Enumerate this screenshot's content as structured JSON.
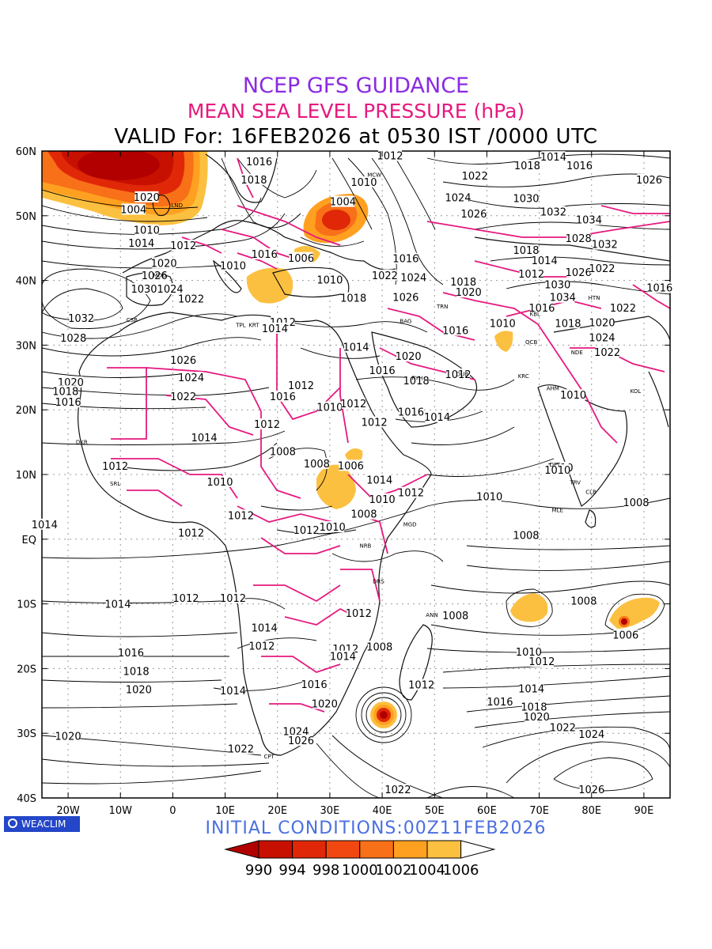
{
  "titles": {
    "line1": "NCEP GFS GUIDANCE",
    "line2": "MEAN SEA LEVEL PRESSURE (hPa)",
    "line3": "VALID For: 16FEB2026 at 0530 IST /0000 UTC"
  },
  "initial_conditions": "INITIAL CONDITIONS:00Z11FEB2026",
  "logo_text": "WEACLIM",
  "colors": {
    "title1": "#8a2be2",
    "title2": "#e6197f",
    "borders": "#e6197f",
    "init": "#4a6fe0",
    "logo": "#2446c8",
    "shade": [
      "#b20000",
      "#c81000",
      "#e02808",
      "#f04810",
      "#f87018",
      "#ffa020",
      "#fcc040",
      "#ffffff"
    ]
  },
  "map": {
    "lat_labels": [
      "60N",
      "50N",
      "40N",
      "30N",
      "20N",
      "10N",
      "EQ",
      "10S",
      "20S",
      "30S",
      "40S"
    ],
    "lon_labels": [
      "20W",
      "10W",
      "0",
      "10E",
      "20E",
      "30E",
      "40E",
      "50E",
      "60E",
      "70E",
      "80E",
      "90E"
    ],
    "contour_labels": [
      {
        "t": "1016",
        "lon": 16.5,
        "lat": 58.3
      },
      {
        "t": "1018",
        "lon": 15.5,
        "lat": 55.5
      },
      {
        "t": "1012",
        "lon": 41.5,
        "lat": 59.2
      },
      {
        "t": "1010",
        "lon": 36.5,
        "lat": 55.1
      },
      {
        "t": "1004",
        "lon": 32.5,
        "lat": 52.1
      },
      {
        "t": "1014",
        "lon": 72.7,
        "lat": 59.0
      },
      {
        "t": "1016",
        "lon": 77.7,
        "lat": 57.7
      },
      {
        "t": "1018",
        "lon": 67.7,
        "lat": 57.7
      },
      {
        "t": "1022",
        "lon": 57.7,
        "lat": 56.1
      },
      {
        "t": "1024",
        "lon": 54.5,
        "lat": 52.7
      },
      {
        "t": "1026",
        "lon": 57.5,
        "lat": 50.2
      },
      {
        "t": "1030",
        "lon": 67.5,
        "lat": 52.6
      },
      {
        "t": "1032",
        "lon": 72.7,
        "lat": 50.5
      },
      {
        "t": "1034",
        "lon": 79.5,
        "lat": 49.3
      },
      {
        "t": "1028",
        "lon": 77.5,
        "lat": 46.4
      },
      {
        "t": "1032",
        "lon": 82.5,
        "lat": 45.5
      },
      {
        "t": "1026",
        "lon": 91.0,
        "lat": 55.5
      },
      {
        "t": "1020",
        "lon": -5.0,
        "lat": 52.8
      },
      {
        "t": "1004",
        "lon": -7.5,
        "lat": 50.9
      },
      {
        "t": "1010",
        "lon": -5.0,
        "lat": 47.7
      },
      {
        "t": "1014",
        "lon": -6.0,
        "lat": 45.7
      },
      {
        "t": "1012",
        "lon": 2.0,
        "lat": 45.3
      },
      {
        "t": "1020",
        "lon": -1.7,
        "lat": 42.6
      },
      {
        "t": "1026",
        "lon": -3.5,
        "lat": 40.7
      },
      {
        "t": "1030",
        "lon": -5.5,
        "lat": 38.6
      },
      {
        "t": "1024",
        "lon": -0.5,
        "lat": 38.6
      },
      {
        "t": "1022",
        "lon": 3.5,
        "lat": 37.1
      },
      {
        "t": "1032",
        "lon": -17.5,
        "lat": 34.1
      },
      {
        "t": "1028",
        "lon": -19.0,
        "lat": 31.0
      },
      {
        "t": "1026",
        "lon": 2.0,
        "lat": 27.6
      },
      {
        "t": "1024",
        "lon": 3.5,
        "lat": 24.9
      },
      {
        "t": "1022",
        "lon": 2.0,
        "lat": 22.0
      },
      {
        "t": "1020",
        "lon": -19.5,
        "lat": 24.2
      },
      {
        "t": "1018",
        "lon": -20.5,
        "lat": 22.8
      },
      {
        "t": "1016",
        "lon": -20.0,
        "lat": 21.1
      },
      {
        "t": "1014",
        "lon": 6.0,
        "lat": 15.6
      },
      {
        "t": "1012",
        "lon": -11.0,
        "lat": 11.2
      },
      {
        "t": "1010",
        "lon": 9.0,
        "lat": 8.8
      },
      {
        "t": "1012",
        "lon": 13.0,
        "lat": 3.6
      },
      {
        "t": "1012",
        "lon": 3.5,
        "lat": 0.9
      },
      {
        "t": "1008",
        "lon": 21.0,
        "lat": 13.5
      },
      {
        "t": "1008",
        "lon": 27.5,
        "lat": 11.6
      },
      {
        "t": "1006",
        "lon": 34.0,
        "lat": 11.3
      },
      {
        "t": "1014",
        "lon": 39.5,
        "lat": 9.1
      },
      {
        "t": "1010",
        "lon": 40.0,
        "lat": 6.1
      },
      {
        "t": "1012",
        "lon": 45.5,
        "lat": 7.1
      },
      {
        "t": "1008",
        "lon": 36.5,
        "lat": 3.8
      },
      {
        "t": "1010",
        "lon": 30.5,
        "lat": 1.8
      },
      {
        "t": "1012",
        "lon": 25.5,
        "lat": 1.3
      },
      {
        "t": "1010",
        "lon": 60.5,
        "lat": 6.5
      },
      {
        "t": "1008",
        "lon": 67.5,
        "lat": 0.5
      },
      {
        "t": "1008",
        "lon": 88.5,
        "lat": 5.6
      },
      {
        "t": "1010",
        "lon": 74.0,
        "lat": 11.0
      },
      {
        "t": "1012",
        "lon": 18.0,
        "lat": 17.7
      },
      {
        "t": "1016",
        "lon": 21.0,
        "lat": 22.0
      },
      {
        "t": "1012",
        "lon": 24.5,
        "lat": 23.7
      },
      {
        "t": "1010",
        "lon": 30.0,
        "lat": 20.3
      },
      {
        "t": "1012",
        "lon": 34.5,
        "lat": 20.9
      },
      {
        "t": "1012",
        "lon": 38.5,
        "lat": 18.0
      },
      {
        "t": "1016",
        "lon": 45.5,
        "lat": 19.6
      },
      {
        "t": "1014",
        "lon": 50.5,
        "lat": 18.8
      },
      {
        "t": "1016",
        "lon": 40.0,
        "lat": 26.0
      },
      {
        "t": "1014",
        "lon": 35.0,
        "lat": 29.6
      },
      {
        "t": "1018",
        "lon": 46.5,
        "lat": 24.4
      },
      {
        "t": "1020",
        "lon": 45.0,
        "lat": 28.2
      },
      {
        "t": "1012",
        "lon": 54.5,
        "lat": 25.4
      },
      {
        "t": "1016",
        "lon": 54.0,
        "lat": 32.2
      },
      {
        "t": "1020",
        "lon": 56.5,
        "lat": 38.1
      },
      {
        "t": "1018",
        "lon": 55.5,
        "lat": 39.7
      },
      {
        "t": "1026",
        "lon": 44.5,
        "lat": 37.3
      },
      {
        "t": "1024",
        "lon": 46.0,
        "lat": 40.4
      },
      {
        "t": "1022",
        "lon": 40.5,
        "lat": 40.7
      },
      {
        "t": "1018",
        "lon": 34.5,
        "lat": 37.2
      },
      {
        "t": "1016",
        "lon": 44.5,
        "lat": 43.3
      },
      {
        "t": "1010",
        "lon": 30.0,
        "lat": 40.0
      },
      {
        "t": "1016",
        "lon": 17.5,
        "lat": 44.0
      },
      {
        "t": "1006",
        "lon": 24.5,
        "lat": 43.4
      },
      {
        "t": "1010",
        "lon": 11.5,
        "lat": 42.2
      },
      {
        "t": "1012",
        "lon": 21.0,
        "lat": 33.5
      },
      {
        "t": "1014",
        "lon": 19.5,
        "lat": 32.5
      },
      {
        "t": "1018",
        "lon": 67.5,
        "lat": 44.6
      },
      {
        "t": "1014",
        "lon": 71.0,
        "lat": 43.0
      },
      {
        "t": "1012",
        "lon": 68.5,
        "lat": 40.9
      },
      {
        "t": "1026",
        "lon": 77.5,
        "lat": 41.2
      },
      {
        "t": "1022",
        "lon": 82.0,
        "lat": 41.8
      },
      {
        "t": "1030",
        "lon": 73.5,
        "lat": 39.3
      },
      {
        "t": "1034",
        "lon": 74.5,
        "lat": 37.3
      },
      {
        "t": "1016",
        "lon": 70.5,
        "lat": 35.7
      },
      {
        "t": "1010",
        "lon": 63.0,
        "lat": 33.3
      },
      {
        "t": "1018",
        "lon": 75.5,
        "lat": 33.3
      },
      {
        "t": "1020",
        "lon": 82.0,
        "lat": 33.4
      },
      {
        "t": "1022",
        "lon": 86.0,
        "lat": 35.7
      },
      {
        "t": "1024",
        "lon": 82.0,
        "lat": 31.1
      },
      {
        "t": "1022",
        "lon": 83.0,
        "lat": 28.8
      },
      {
        "t": "1016",
        "lon": 93.0,
        "lat": 38.8
      },
      {
        "t": "1010",
        "lon": 76.5,
        "lat": 22.2
      },
      {
        "t": "1010",
        "lon": 73.5,
        "lat": 10.6
      },
      {
        "t": "1014",
        "lon": -24.5,
        "lat": 2.2
      },
      {
        "t": "1012",
        "lon": 2.5,
        "lat": -9.2
      },
      {
        "t": "1012",
        "lon": 11.5,
        "lat": -9.2
      },
      {
        "t": "1014",
        "lon": -10.5,
        "lat": -10.1
      },
      {
        "t": "1014",
        "lon": 17.5,
        "lat": -13.8
      },
      {
        "t": "1012",
        "lon": 17.0,
        "lat": -16.6
      },
      {
        "t": "1012",
        "lon": 35.5,
        "lat": -11.5
      },
      {
        "t": "1012",
        "lon": 33.0,
        "lat": -17.0
      },
      {
        "t": "1014",
        "lon": 32.5,
        "lat": -18.2
      },
      {
        "t": "1008",
        "lon": 39.5,
        "lat": -16.7
      },
      {
        "t": "1008",
        "lon": 54.0,
        "lat": -11.9
      },
      {
        "t": "1008",
        "lon": 78.5,
        "lat": -9.6
      },
      {
        "t": "1006",
        "lon": 86.5,
        "lat": -14.9
      },
      {
        "t": "1016",
        "lon": -8.0,
        "lat": -17.6
      },
      {
        "t": "1018",
        "lon": -7.0,
        "lat": -20.5
      },
      {
        "t": "1020",
        "lon": -6.5,
        "lat": -23.3
      },
      {
        "t": "1020",
        "lon": -20.0,
        "lat": -30.5
      },
      {
        "t": "1014",
        "lon": 11.5,
        "lat": -23.5
      },
      {
        "t": "1016",
        "lon": 27.0,
        "lat": -22.5
      },
      {
        "t": "1020",
        "lon": 29.0,
        "lat": -25.5
      },
      {
        "t": "1022",
        "lon": 13.0,
        "lat": -32.5
      },
      {
        "t": "1024",
        "lon": 23.5,
        "lat": -29.8
      },
      {
        "t": "1026",
        "lon": 24.5,
        "lat": -31.2
      },
      {
        "t": "1012",
        "lon": 47.5,
        "lat": -22.6
      },
      {
        "t": "1010",
        "lon": 68.0,
        "lat": -17.5
      },
      {
        "t": "1012",
        "lon": 70.5,
        "lat": -19.0
      },
      {
        "t": "1014",
        "lon": 68.5,
        "lat": -23.2
      },
      {
        "t": "1016",
        "lon": 62.5,
        "lat": -25.2
      },
      {
        "t": "1018",
        "lon": 69.0,
        "lat": -26.0
      },
      {
        "t": "1020",
        "lon": 69.5,
        "lat": -27.5
      },
      {
        "t": "1022",
        "lon": 74.5,
        "lat": -29.2
      },
      {
        "t": "1024",
        "lon": 80.0,
        "lat": -30.2
      },
      {
        "t": "1026",
        "lon": 80.0,
        "lat": -38.8
      },
      {
        "t": "1022",
        "lon": 43.0,
        "lat": -38.8
      }
    ],
    "station_labels": [
      {
        "t": "MCW",
        "lon": 38.5,
        "lat": 56.0
      },
      {
        "t": "LND",
        "lon": 0.8,
        "lat": 51.3
      },
      {
        "t": "MDD",
        "lon": -2.5,
        "lat": 40.5
      },
      {
        "t": "CSB",
        "lon": -7.8,
        "lat": 33.6
      },
      {
        "t": "TPL",
        "lon": 13.0,
        "lat": 32.8
      },
      {
        "t": "KRT",
        "lon": 15.5,
        "lat": 32.8
      },
      {
        "t": "BAG",
        "lon": 44.5,
        "lat": 33.4
      },
      {
        "t": "TRN",
        "lon": 51.5,
        "lat": 35.7
      },
      {
        "t": "KBL",
        "lon": 69.2,
        "lat": 34.5
      },
      {
        "t": "RYH",
        "lon": 46.7,
        "lat": 24.6
      },
      {
        "t": "DUB",
        "lon": 55.3,
        "lat": 25.2
      },
      {
        "t": "KRC",
        "lon": 67.0,
        "lat": 24.9
      },
      {
        "t": "NDE",
        "lon": 77.2,
        "lat": 28.6
      },
      {
        "t": "HTN",
        "lon": 80.5,
        "lat": 37.0
      },
      {
        "t": "QCB",
        "lon": 68.5,
        "lat": 30.2
      },
      {
        "t": "AHM",
        "lon": 72.6,
        "lat": 23.0
      },
      {
        "t": "KOL",
        "lon": 88.4,
        "lat": 22.6
      },
      {
        "t": "DKR",
        "lon": -17.4,
        "lat": 14.7
      },
      {
        "t": "SRL",
        "lon": -11.0,
        "lat": 8.3
      },
      {
        "t": "MGD",
        "lon": 45.3,
        "lat": 2.0
      },
      {
        "t": "NRB",
        "lon": 36.8,
        "lat": -1.3
      },
      {
        "t": "DRS",
        "lon": 39.3,
        "lat": -6.8
      },
      {
        "t": "ANN",
        "lon": 49.5,
        "lat": -12.0
      },
      {
        "t": "CPT",
        "lon": 18.4,
        "lat": -33.9
      },
      {
        "t": "DFT",
        "lon": 73.0,
        "lat": 11.2
      },
      {
        "t": "MLE",
        "lon": 73.5,
        "lat": 4.2
      },
      {
        "t": "CLB",
        "lon": 79.9,
        "lat": 7.0
      },
      {
        "t": "TRV",
        "lon": 76.9,
        "lat": 8.5
      }
    ]
  },
  "colorbar": {
    "labels": [
      "990",
      "994",
      "998",
      "1000",
      "1002",
      "1004",
      "1006"
    ]
  }
}
